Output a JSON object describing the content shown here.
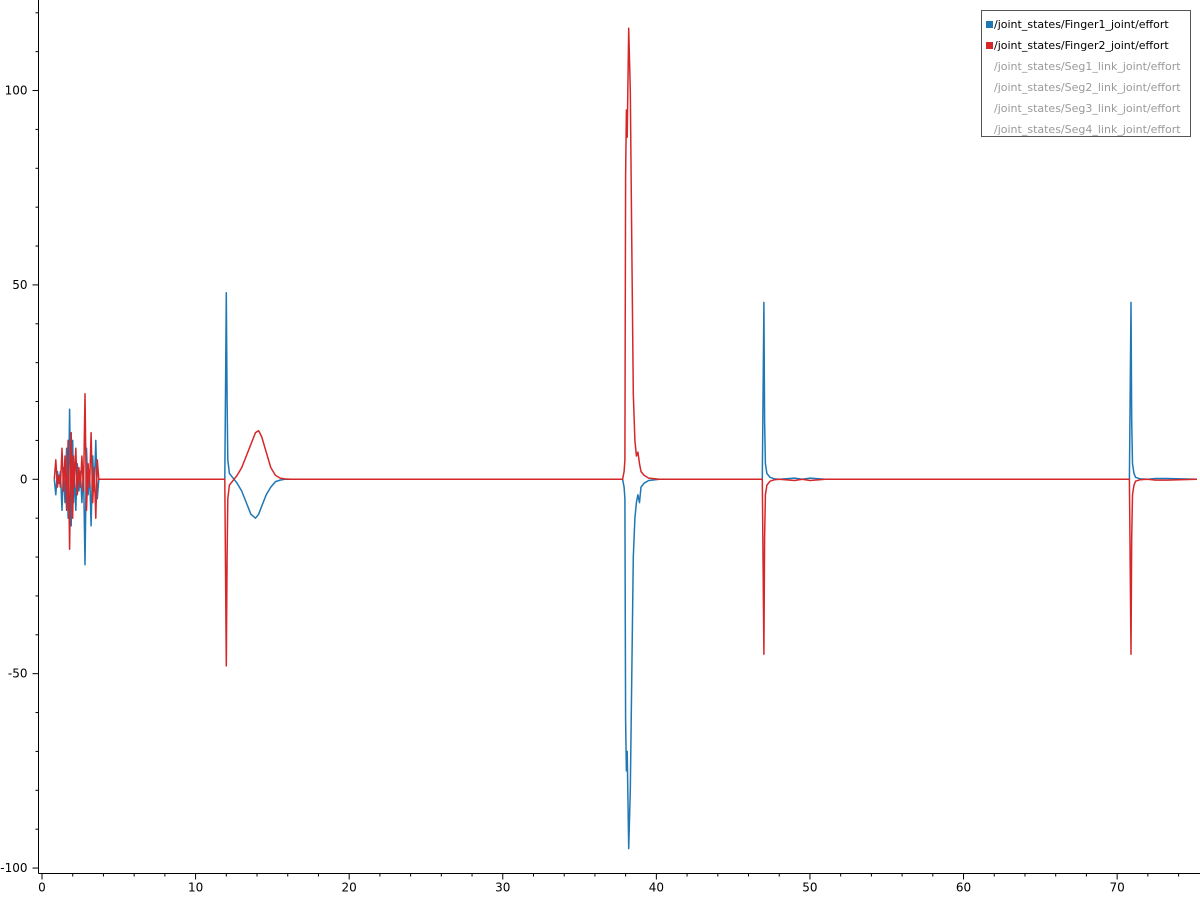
{
  "chart_data": {
    "type": "line",
    "xlim": [
      0,
      75.2
    ],
    "ylim": [
      -100.5,
      122
    ],
    "x_ticks": [
      0,
      10,
      20,
      30,
      40,
      50,
      60,
      70
    ],
    "x_tick_labels": [
      "0",
      "10",
      "20",
      "30",
      "40",
      "50",
      "60",
      "70"
    ],
    "y_ticks": [
      -100,
      -50,
      0,
      50,
      100
    ],
    "y_tick_labels": [
      "-100",
      "-50",
      "0",
      "50",
      "100"
    ],
    "grid": false,
    "legend_position": "top-right",
    "legend": [
      {
        "label": "/joint_states/Finger1_joint/effort",
        "color": "#1f77b4",
        "active": true
      },
      {
        "label": "/joint_states/Finger2_joint/effort",
        "color": "#d62728",
        "active": true
      },
      {
        "label": "/joint_states/Seg1_link_joint/effort",
        "color": "",
        "active": false
      },
      {
        "label": "/joint_states/Seg2_link_joint/effort",
        "color": "",
        "active": false
      },
      {
        "label": "/joint_states/Seg3_link_joint/effort",
        "color": "",
        "active": false
      },
      {
        "label": "/joint_states/Seg4_link_joint/effort",
        "color": "",
        "active": false
      }
    ],
    "series": [
      {
        "name": "/joint_states/Finger1_joint/effort",
        "color": "#1f77b4",
        "x": [
          0.8,
          0.9,
          1.0,
          1.1,
          1.2,
          1.3,
          1.4,
          1.5,
          1.6,
          1.7,
          1.8,
          1.9,
          2.0,
          2.05,
          2.1,
          2.2,
          2.3,
          2.4,
          2.5,
          2.6,
          2.7,
          2.8,
          2.9,
          3.0,
          3.1,
          3.2,
          3.3,
          3.4,
          3.5,
          3.6,
          3.7,
          3.8,
          11.9,
          12.0,
          12.05,
          12.1,
          12.2,
          12.4,
          12.7,
          13.0,
          13.3,
          13.6,
          13.9,
          14.1,
          14.3,
          14.6,
          14.9,
          15.2,
          15.5,
          15.8,
          16.2,
          37.8,
          37.9,
          37.95,
          38.0,
          38.05,
          38.1,
          38.2,
          38.3,
          38.4,
          38.5,
          38.6,
          38.7,
          38.8,
          38.9,
          39.0,
          39.2,
          39.5,
          40.2,
          46.9,
          47.0,
          47.05,
          47.1,
          47.2,
          47.4,
          47.7,
          48.0,
          49.0,
          49.5,
          50.0,
          51.0,
          70.8,
          70.9,
          70.95,
          71.0,
          71.1,
          71.2,
          71.5,
          72.0,
          72.5,
          73.2,
          75.2
        ],
        "y": [
          0,
          -4,
          2,
          -1,
          2,
          -8,
          3,
          -6,
          8,
          -10,
          18,
          -12,
          10,
          -6,
          2,
          -8,
          4,
          -3,
          2,
          -6,
          3,
          -22,
          8,
          -4,
          2,
          -12,
          6,
          -3,
          10,
          -5,
          0,
          0,
          0,
          48,
          20,
          5,
          1.5,
          0.5,
          -1,
          -3,
          -6,
          -9,
          -10,
          -9,
          -7,
          -4,
          -2,
          -0.6,
          -0.2,
          0,
          0,
          0,
          -2,
          -5,
          -62,
          -75,
          -70,
          -95,
          -80,
          -50,
          -20,
          -10,
          -6,
          -4,
          -6,
          -2,
          -1,
          -0.3,
          0,
          0,
          45.5,
          15,
          4,
          1.5,
          0.5,
          0.1,
          0,
          0.3,
          0,
          0.3,
          0,
          0,
          45.5,
          15,
          4,
          1.5,
          0.5,
          0.1,
          0,
          0.2,
          0.2,
          0
        ]
      },
      {
        "name": "/joint_states/Finger2_joint/effort",
        "color": "#d62728",
        "x": [
          0.8,
          0.9,
          1.0,
          1.1,
          1.2,
          1.3,
          1.4,
          1.5,
          1.6,
          1.7,
          1.8,
          1.9,
          2.0,
          2.05,
          2.1,
          2.2,
          2.3,
          2.4,
          2.5,
          2.6,
          2.7,
          2.8,
          2.9,
          3.0,
          3.1,
          3.2,
          3.3,
          3.4,
          3.5,
          3.6,
          3.7,
          3.8,
          11.9,
          12.0,
          12.05,
          12.1,
          12.2,
          12.4,
          12.7,
          13.0,
          13.3,
          13.6,
          13.9,
          14.1,
          14.3,
          14.6,
          14.9,
          15.2,
          15.5,
          15.8,
          16.2,
          37.8,
          37.9,
          37.95,
          38.0,
          38.05,
          38.1,
          38.2,
          38.3,
          38.4,
          38.5,
          38.6,
          38.7,
          38.8,
          38.9,
          39.0,
          39.2,
          39.5,
          40.2,
          46.9,
          47.0,
          47.05,
          47.1,
          47.2,
          47.4,
          47.7,
          48.0,
          49.0,
          49.5,
          50.0,
          51.0,
          70.8,
          70.9,
          70.95,
          71.0,
          71.1,
          71.2,
          71.5,
          72.0,
          72.5,
          73.2,
          75.2
        ],
        "y": [
          0,
          5,
          -2,
          1,
          -2,
          8,
          -3,
          6,
          -8,
          10,
          -18,
          12,
          -10,
          6,
          -2,
          8,
          -4,
          3,
          -2,
          6,
          -3,
          22,
          -8,
          4,
          -2,
          12,
          -6,
          3,
          -10,
          5,
          0,
          0,
          0,
          -48,
          -20,
          -5,
          -1.5,
          -0.5,
          1,
          3,
          6,
          9,
          12,
          12.5,
          11,
          7,
          3,
          1,
          0.3,
          0.1,
          0,
          0,
          2,
          5,
          78,
          95,
          88,
          116,
          100,
          60,
          22,
          10,
          6,
          7,
          4,
          2,
          1,
          0.3,
          0,
          0,
          -45,
          -15,
          -4,
          -1.5,
          -0.5,
          -0.1,
          0,
          -0.3,
          0,
          -0.3,
          0,
          0,
          -45,
          -15,
          -4,
          -1.5,
          -0.5,
          -0.1,
          0,
          -0.2,
          -0.2,
          0
        ]
      }
    ]
  }
}
